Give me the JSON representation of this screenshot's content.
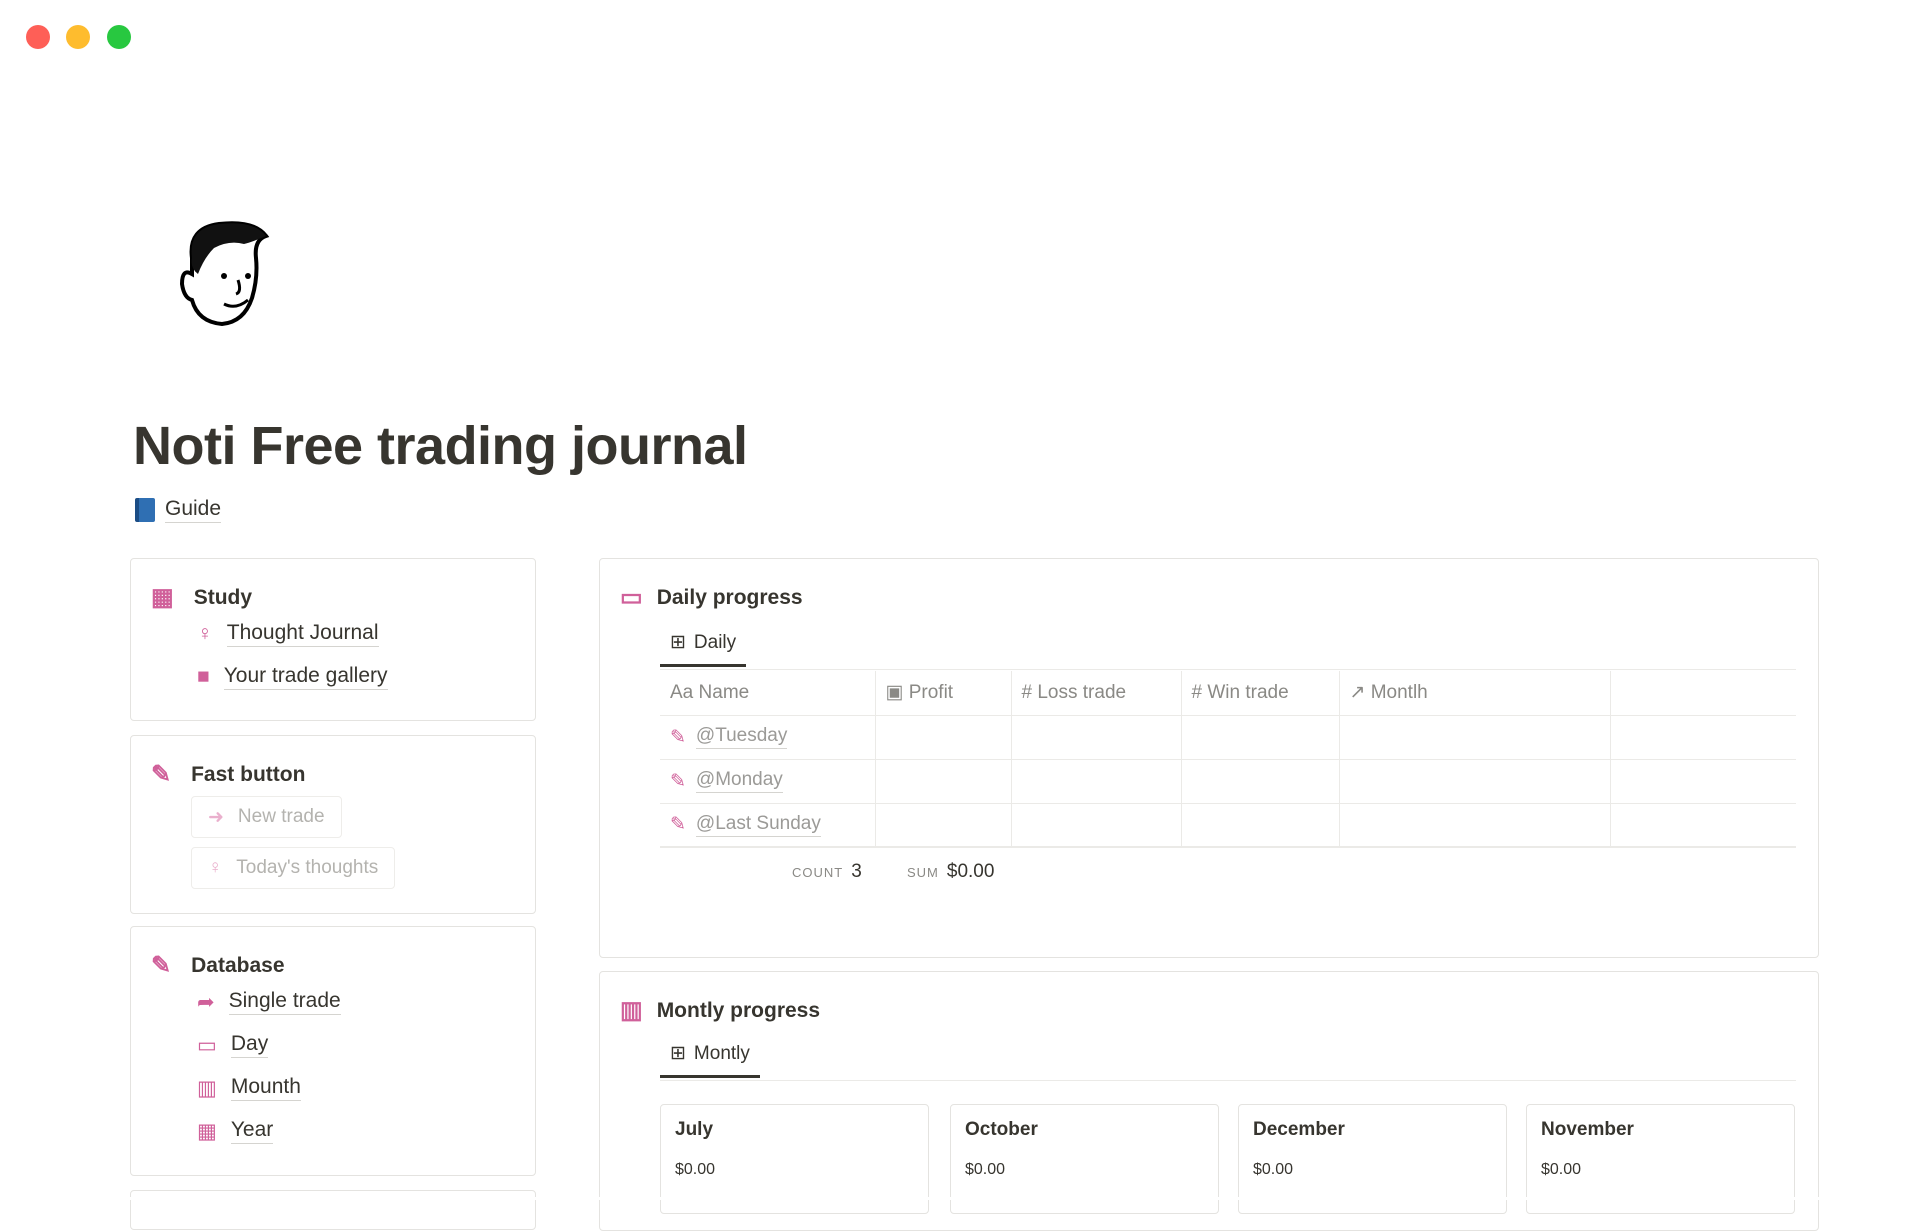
{
  "window": {
    "controls": [
      "close",
      "minimize",
      "maximize"
    ],
    "colors": {
      "close": "#fe5f57",
      "minimize": "#febc2e",
      "maximize": "#28c840"
    }
  },
  "page": {
    "title": "Noti Free trading journal",
    "guide_label": "Guide",
    "accent": "#d0609a"
  },
  "study": {
    "title": "Study",
    "items": [
      {
        "label": "Thought Journal",
        "icon": "bulb-head-icon"
      },
      {
        "label": "Your trade gallery",
        "icon": "gallery-icon"
      }
    ]
  },
  "fast": {
    "title": "Fast button",
    "buttons": [
      {
        "label": "New trade",
        "icon": "arrow-right-icon"
      },
      {
        "label": "Today's thoughts",
        "icon": "bulb-head-icon"
      }
    ]
  },
  "database": {
    "title": "Database",
    "items": [
      {
        "label": "Single trade",
        "icon": "share-arrow-icon"
      },
      {
        "label": "Day",
        "icon": "calendar-icon"
      },
      {
        "label": "Mounth",
        "icon": "calendar-month-icon"
      },
      {
        "label": "Year",
        "icon": "calendar-year-icon"
      }
    ]
  },
  "daily": {
    "title": "Daily progress",
    "tab": "Daily",
    "columns": [
      {
        "icon": "Aa",
        "label": "Name"
      },
      {
        "icon": "money-icon",
        "label": "Profit"
      },
      {
        "icon": "#",
        "label": "Loss trade"
      },
      {
        "icon": "#",
        "label": "Win trade"
      },
      {
        "icon": "↗",
        "label": "Montlh"
      }
    ],
    "rows": [
      {
        "name": "@Tuesday"
      },
      {
        "name": "@Monday"
      },
      {
        "name": "@Last Sunday"
      }
    ],
    "count_label": "COUNT",
    "count": "3",
    "sum_label": "SUM",
    "sum": "$0.00"
  },
  "monthly": {
    "title": "Montly progress",
    "tab": "Montly",
    "cards": [
      {
        "name": "July",
        "value": "$0.00"
      },
      {
        "name": "October",
        "value": "$0.00"
      },
      {
        "name": "December",
        "value": "$0.00"
      },
      {
        "name": "November",
        "value": "$0.00"
      }
    ]
  }
}
